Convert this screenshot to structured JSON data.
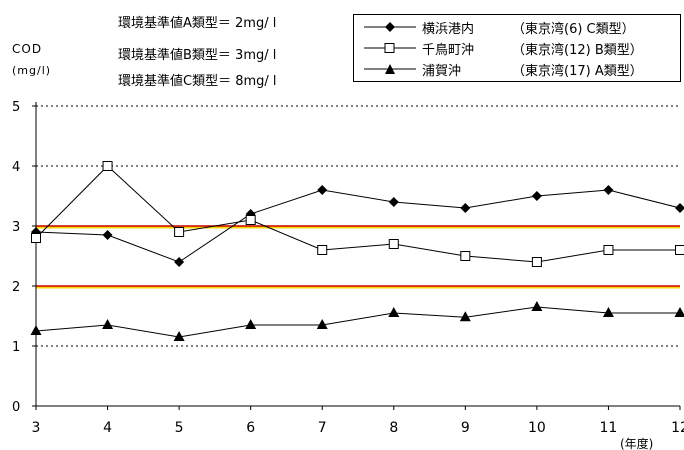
{
  "standards": [
    {
      "text": "環境基準値A類型＝ 2mg/ l"
    },
    {
      "text": "環境基準値B類型＝ 3mg/ l"
    },
    {
      "text": "環境基準値C類型＝ 8mg/ l"
    }
  ],
  "colors": {
    "reference_red": "#cc0000",
    "reference_yellow": "#f5d800",
    "series_line": "#000000"
  },
  "chart_data": {
    "type": "line",
    "ylabel_lines": [
      "COD",
      "(mg/l)"
    ],
    "xlabel": "(年度)",
    "x": [
      3,
      4,
      5,
      6,
      7,
      8,
      9,
      10,
      11,
      12
    ],
    "ylim": [
      0,
      5
    ],
    "yticks": [
      0,
      1,
      2,
      3,
      4,
      5
    ],
    "grid": "dotted horizontal at 1, 4, 5",
    "legend_position": "top-right",
    "reference_lines": [
      {
        "value": 2,
        "color": "red-yellow"
      },
      {
        "value": 3,
        "color": "red-yellow"
      }
    ],
    "series": [
      {
        "name": "横浜港内",
        "detail": "（東京湾(6) C類型）",
        "marker": "diamond-filled",
        "values": [
          2.9,
          2.85,
          2.4,
          3.2,
          3.6,
          3.4,
          3.3,
          3.5,
          3.6,
          3.3
        ]
      },
      {
        "name": "千鳥町沖",
        "detail": "（東京湾(12) B類型）",
        "marker": "square-open",
        "values": [
          2.8,
          4.0,
          2.9,
          3.1,
          2.6,
          2.7,
          2.5,
          2.4,
          2.6,
          2.6
        ]
      },
      {
        "name": "浦賀沖",
        "detail": "（東京湾(17) A類型）",
        "marker": "triangle-filled",
        "values": [
          1.25,
          1.35,
          1.15,
          1.35,
          1.35,
          1.55,
          1.48,
          1.65,
          1.55,
          1.55
        ]
      }
    ]
  }
}
